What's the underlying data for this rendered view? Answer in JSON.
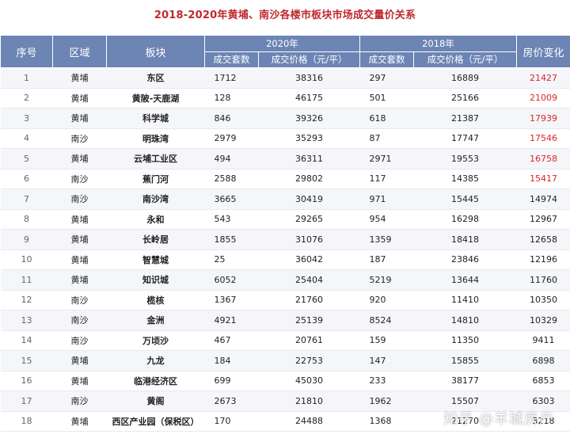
{
  "title": "2018-2020年黄埔、南沙各楼市板块市场成交量价关系",
  "headers": {
    "index": "序号",
    "region": "区域",
    "block": "板块",
    "year2020": "2020年",
    "year2018": "2018年",
    "change": "房价变化",
    "volume": "成交套数",
    "price": "成交价格（元/平）"
  },
  "rows": [
    {
      "no": "1",
      "region": "黄埔",
      "block": "东区",
      "v2020": "1712",
      "p2020": "38316",
      "v2018": "297",
      "p2018": "16889",
      "change": "21427",
      "highlight": true
    },
    {
      "no": "2",
      "region": "黄埔",
      "block": "黄陂-天鹿湖",
      "v2020": "128",
      "p2020": "46175",
      "v2018": "501",
      "p2018": "25166",
      "change": "21009",
      "highlight": true
    },
    {
      "no": "3",
      "region": "黄埔",
      "block": "科学城",
      "v2020": "846",
      "p2020": "39326",
      "v2018": "618",
      "p2018": "21387",
      "change": "17939",
      "highlight": true
    },
    {
      "no": "4",
      "region": "南沙",
      "block": "明珠湾",
      "v2020": "2979",
      "p2020": "35293",
      "v2018": "87",
      "p2018": "17747",
      "change": "17546",
      "highlight": true
    },
    {
      "no": "5",
      "region": "黄埔",
      "block": "云埔工业区",
      "v2020": "494",
      "p2020": "36311",
      "v2018": "2971",
      "p2018": "19553",
      "change": "16758",
      "highlight": true
    },
    {
      "no": "6",
      "region": "南沙",
      "block": "蕉门河",
      "v2020": "2588",
      "p2020": "29802",
      "v2018": "117",
      "p2018": "14385",
      "change": "15417",
      "highlight": true
    },
    {
      "no": "7",
      "region": "南沙",
      "block": "南沙湾",
      "v2020": "3665",
      "p2020": "30419",
      "v2018": "971",
      "p2018": "15445",
      "change": "14974",
      "highlight": false
    },
    {
      "no": "8",
      "region": "黄埔",
      "block": "永和",
      "v2020": "543",
      "p2020": "29265",
      "v2018": "954",
      "p2018": "16298",
      "change": "12967",
      "highlight": false
    },
    {
      "no": "9",
      "region": "黄埔",
      "block": "长岭居",
      "v2020": "1855",
      "p2020": "31076",
      "v2018": "1359",
      "p2018": "18418",
      "change": "12658",
      "highlight": false
    },
    {
      "no": "10",
      "region": "黄埔",
      "block": "智慧城",
      "v2020": "25",
      "p2020": "36042",
      "v2018": "187",
      "p2018": "23846",
      "change": "12196",
      "highlight": false
    },
    {
      "no": "11",
      "region": "黄埔",
      "block": "知识城",
      "v2020": "6052",
      "p2020": "25404",
      "v2018": "5219",
      "p2018": "13644",
      "change": "11760",
      "highlight": false
    },
    {
      "no": "12",
      "region": "南沙",
      "block": "榄核",
      "v2020": "1367",
      "p2020": "21760",
      "v2018": "920",
      "p2018": "11410",
      "change": "10350",
      "highlight": false
    },
    {
      "no": "13",
      "region": "南沙",
      "block": "金洲",
      "v2020": "4921",
      "p2020": "25139",
      "v2018": "8524",
      "p2018": "14810",
      "change": "10329",
      "highlight": false
    },
    {
      "no": "14",
      "region": "南沙",
      "block": "万顷沙",
      "v2020": "467",
      "p2020": "20761",
      "v2018": "159",
      "p2018": "11350",
      "change": "9411",
      "highlight": false
    },
    {
      "no": "15",
      "region": "黄埔",
      "block": "九龙",
      "v2020": "184",
      "p2020": "22753",
      "v2018": "147",
      "p2018": "15855",
      "change": "6898",
      "highlight": false
    },
    {
      "no": "16",
      "region": "黄埔",
      "block": "临港经济区",
      "v2020": "699",
      "p2020": "45030",
      "v2018": "233",
      "p2018": "38177",
      "change": "6853",
      "highlight": false
    },
    {
      "no": "17",
      "region": "南沙",
      "block": "黄阁",
      "v2020": "2673",
      "p2020": "21810",
      "v2018": "1962",
      "p2018": "15507",
      "change": "6303",
      "highlight": false
    },
    {
      "no": "18",
      "region": "黄埔",
      "block": "西区产业园（保税区）",
      "v2020": "170",
      "p2020": "24488",
      "v2018": "1368",
      "p2018": "21270",
      "change": "3218",
      "highlight": false
    }
  ],
  "watermark": "知乎 @羊城房产",
  "colors": {
    "header_bg": "#6d85b4",
    "title": "#c0282e",
    "highlight": "#e02424"
  }
}
